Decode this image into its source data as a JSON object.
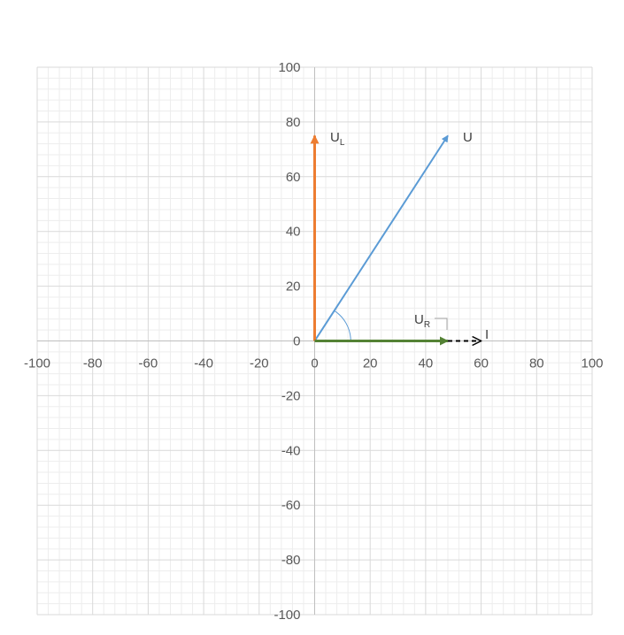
{
  "chart_data": {
    "type": "scatter",
    "title": "",
    "xlabel": "",
    "ylabel": "",
    "xlim": [
      -100,
      100
    ],
    "ylim": [
      -100,
      100
    ],
    "major_step": 20,
    "minor_step": 4,
    "grid": true,
    "x_ticks": [
      "-100",
      "-80",
      "-60",
      "-40",
      "-20",
      "0",
      "20",
      "40",
      "60",
      "80",
      "100"
    ],
    "y_ticks": [
      "100",
      "80",
      "60",
      "40",
      "20",
      "0",
      "-20",
      "-40",
      "-60",
      "-80",
      "-100"
    ],
    "series": [
      {
        "name": "U",
        "color": "#5B9BD5",
        "style": "solid",
        "points": [
          [
            0,
            0
          ],
          [
            48,
            75
          ]
        ]
      },
      {
        "name": "UL",
        "color": "#ED7D31",
        "style": "solid",
        "points": [
          [
            0,
            0
          ],
          [
            0,
            75
          ]
        ]
      },
      {
        "name": "UR",
        "color": "#548235",
        "style": "solid",
        "points": [
          [
            0,
            0
          ],
          [
            48,
            0
          ]
        ]
      },
      {
        "name": "I",
        "color": "#000000",
        "style": "dashed",
        "points": [
          [
            48,
            0
          ],
          [
            60,
            0
          ]
        ]
      }
    ],
    "labels": {
      "U": "U",
      "UL_main": "U",
      "UL_sub": "L",
      "UR_main": "U",
      "UR_sub": "R",
      "I": "I"
    },
    "angle_arc": {
      "radius": 13,
      "from_deg": 0,
      "to_deg": 57.4,
      "color": "#5B9BD5"
    }
  }
}
